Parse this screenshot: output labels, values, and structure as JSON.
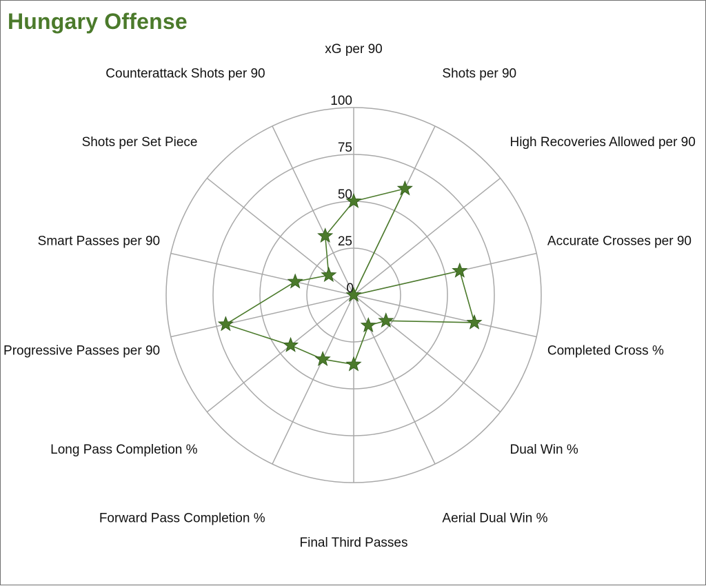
{
  "chart_data": {
    "type": "radar",
    "title": "Hungary Offense",
    "range": [
      0,
      100
    ],
    "ticks": [
      0,
      25,
      50,
      75,
      100
    ],
    "grid": true,
    "marker": "star",
    "series_color": "#4b7a2b",
    "grid_color": "#a8a8a8",
    "axes": [
      "xG per 90",
      "Shots per 90",
      "High Recoveries Allowed per 90",
      "Accurate Crosses per 90",
      "Completed Cross %",
      "Dual Win %",
      "Aerial Dual Win %",
      "Final Third Passes",
      "Forward Pass Completion %",
      "Long Pass Completion %",
      "Progressive Passes per 90",
      "Smart Passes per 90",
      "Shots per Set Piece",
      "Counterattack Shots per 90"
    ],
    "series": [
      {
        "values": [
          50,
          63,
          0,
          58,
          66,
          22,
          18,
          37,
          38,
          43,
          70,
          32,
          17,
          35
        ]
      }
    ]
  }
}
